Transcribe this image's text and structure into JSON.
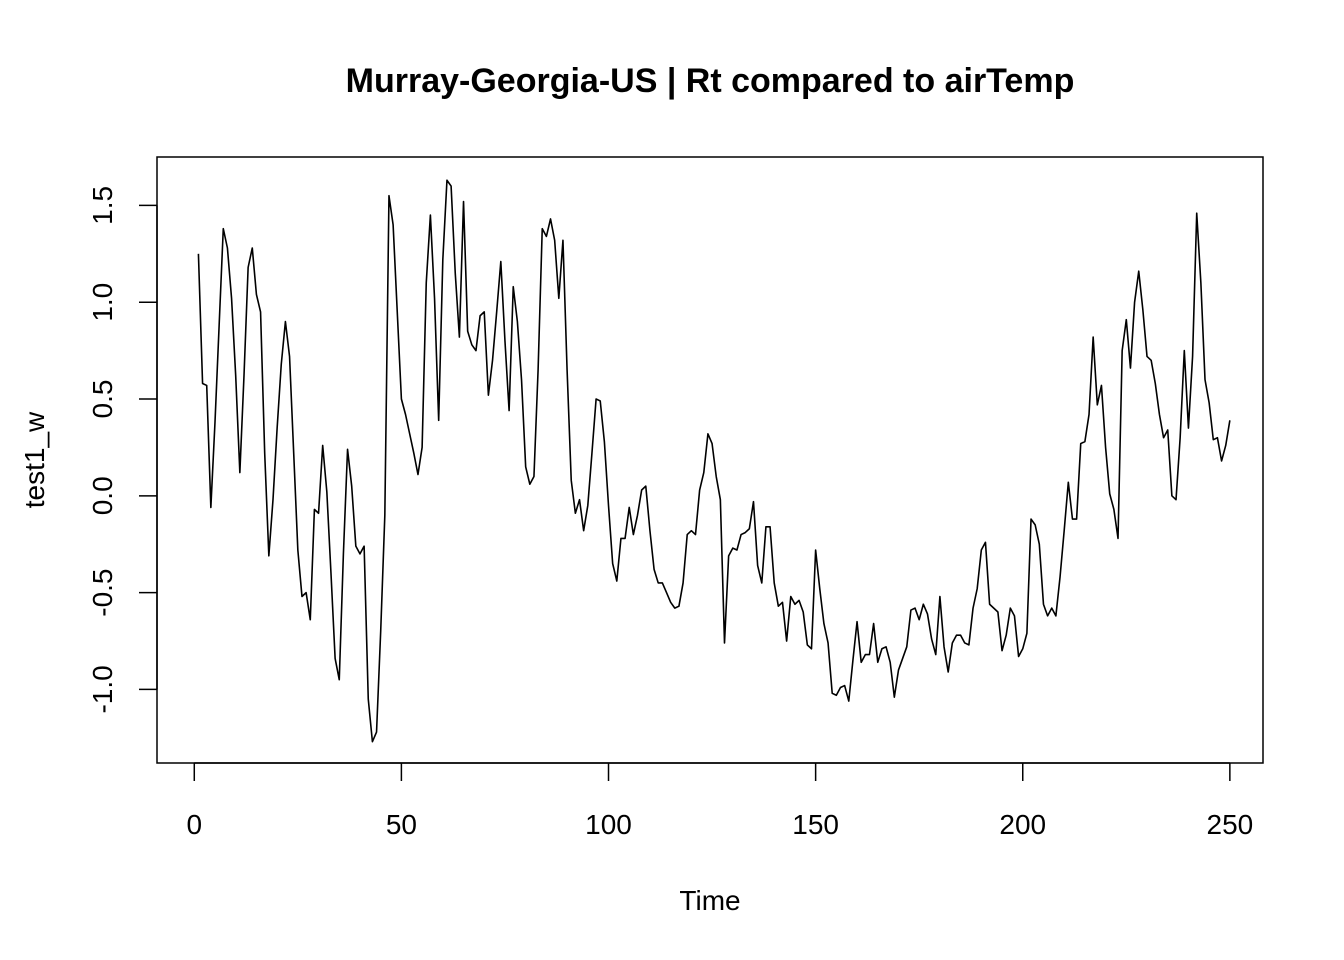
{
  "chart_data": {
    "type": "line",
    "title": "Murray-Georgia-US | Rt compared to airTemp",
    "xlabel": "Time",
    "ylabel": "test1_w",
    "xlim": [
      -9,
      258
    ],
    "ylim": [
      -1.38,
      1.75
    ],
    "x_ticks": [
      0,
      50,
      100,
      150,
      200,
      250
    ],
    "y_ticks": [
      -1.0,
      -0.5,
      0.0,
      0.5,
      1.0,
      1.5
    ],
    "x_tick_labels": [
      "0",
      "50",
      "100",
      "150",
      "200",
      "250"
    ],
    "y_tick_labels": [
      "-1.0",
      "-0.5",
      "0.0",
      "0.5",
      "1.0",
      "1.5"
    ],
    "grid": false,
    "line_color": "#000000",
    "series": [
      {
        "x_start": 1,
        "x_step": 1,
        "values": [
          1.25,
          0.58,
          0.57,
          -0.06,
          0.38,
          0.88,
          1.38,
          1.28,
          1.02,
          0.62,
          0.12,
          0.62,
          1.18,
          1.28,
          1.04,
          0.95,
          0.22,
          -0.31,
          -0.02,
          0.35,
          0.68,
          0.9,
          0.72,
          0.22,
          -0.28,
          -0.52,
          -0.5,
          -0.64,
          -0.07,
          -0.09,
          0.26,
          0.02,
          -0.4,
          -0.84,
          -0.95,
          -0.3,
          0.24,
          0.05,
          -0.26,
          -0.3,
          -0.26,
          -1.05,
          -1.27,
          -1.22,
          -0.7,
          -0.1,
          1.55,
          1.4,
          0.95,
          0.5,
          0.42,
          0.32,
          0.22,
          0.11,
          0.25,
          1.1,
          1.45,
          1.02,
          0.39,
          1.22,
          1.63,
          1.6,
          1.15,
          0.82,
          1.52,
          0.85,
          0.78,
          0.75,
          0.93,
          0.95,
          0.52,
          0.7,
          0.95,
          1.21,
          0.8,
          0.44,
          1.08,
          0.9,
          0.6,
          0.15,
          0.06,
          0.1,
          0.65,
          1.38,
          1.34,
          1.43,
          1.32,
          1.02,
          1.32,
          0.65,
          0.08,
          -0.09,
          -0.02,
          -0.18,
          -0.05,
          0.22,
          0.5,
          0.49,
          0.28,
          -0.05,
          -0.35,
          -0.44,
          -0.22,
          -0.22,
          -0.06,
          -0.2,
          -0.1,
          0.03,
          0.05,
          -0.18,
          -0.38,
          -0.45,
          -0.45,
          -0.5,
          -0.55,
          -0.58,
          -0.57,
          -0.45,
          -0.2,
          -0.18,
          -0.2,
          0.03,
          0.12,
          0.32,
          0.27,
          0.1,
          -0.02,
          -0.76,
          -0.31,
          -0.27,
          -0.28,
          -0.2,
          -0.19,
          -0.17,
          -0.03,
          -0.36,
          -0.45,
          -0.16,
          -0.16,
          -0.45,
          -0.57,
          -0.55,
          -0.75,
          -0.52,
          -0.56,
          -0.54,
          -0.6,
          -0.77,
          -0.79,
          -0.28,
          -0.48,
          -0.66,
          -0.76,
          -1.02,
          -1.03,
          -0.99,
          -0.98,
          -1.06,
          -0.85,
          -0.65,
          -0.86,
          -0.82,
          -0.82,
          -0.66,
          -0.86,
          -0.79,
          -0.78,
          -0.86,
          -1.04,
          -0.9,
          -0.84,
          -0.78,
          -0.59,
          -0.58,
          -0.64,
          -0.56,
          -0.61,
          -0.74,
          -0.82,
          -0.52,
          -0.78,
          -0.91,
          -0.76,
          -0.72,
          -0.72,
          -0.76,
          -0.77,
          -0.58,
          -0.48,
          -0.28,
          -0.24,
          -0.56,
          -0.58,
          -0.6,
          -0.8,
          -0.72,
          -0.58,
          -0.62,
          -0.83,
          -0.79,
          -0.71,
          -0.12,
          -0.15,
          -0.25,
          -0.56,
          -0.62,
          -0.58,
          -0.62,
          -0.42,
          -0.18,
          0.07,
          -0.12,
          -0.12,
          0.27,
          0.28,
          0.42,
          0.82,
          0.47,
          0.57,
          0.25,
          0.01,
          -0.07,
          -0.22,
          0.75,
          0.91,
          0.66,
          1.0,
          1.16,
          0.96,
          0.72,
          0.7,
          0.58,
          0.42,
          0.3,
          0.34,
          0.0,
          -0.02,
          0.3,
          0.75,
          0.35,
          0.72,
          1.46,
          1.1,
          0.6,
          0.48,
          0.29,
          0.3,
          0.18,
          0.26,
          0.39
        ]
      }
    ]
  }
}
